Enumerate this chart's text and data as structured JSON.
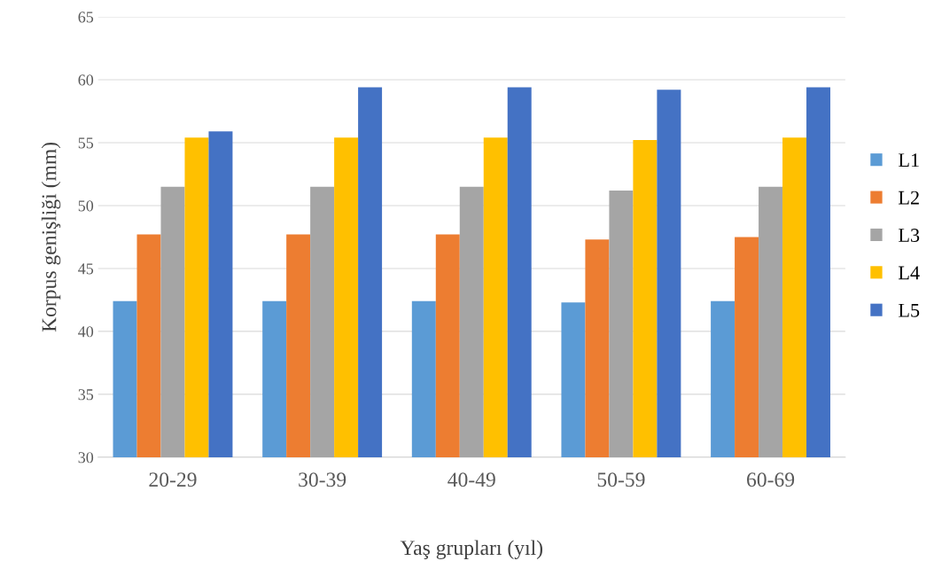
{
  "chart_data": {
    "type": "bar",
    "xlabel": "Yaş grupları (yıl)",
    "ylabel": "Korpus genişliği (mm)",
    "categories": [
      "20-29",
      "30-39",
      "40-49",
      "50-59",
      "60-69"
    ],
    "series": [
      {
        "name": "L1",
        "color": "#5b9bd5",
        "values": [
          42.4,
          42.4,
          42.4,
          42.3,
          42.4
        ]
      },
      {
        "name": "L2",
        "color": "#ed7d31",
        "values": [
          47.7,
          47.7,
          47.7,
          47.3,
          47.5
        ]
      },
      {
        "name": "L3",
        "color": "#a5a5a5",
        "values": [
          51.5,
          51.5,
          51.5,
          51.2,
          51.5
        ]
      },
      {
        "name": "L4",
        "color": "#ffc000",
        "values": [
          55.4,
          55.4,
          55.4,
          55.2,
          55.4
        ]
      },
      {
        "name": "L5",
        "color": "#4472c4",
        "values": [
          55.9,
          59.4,
          59.4,
          59.2,
          59.4
        ]
      }
    ],
    "ylim": [
      30,
      65
    ],
    "yticks": [
      30,
      35,
      40,
      45,
      50,
      55,
      60,
      65
    ],
    "grid": "y",
    "legend": "right"
  }
}
